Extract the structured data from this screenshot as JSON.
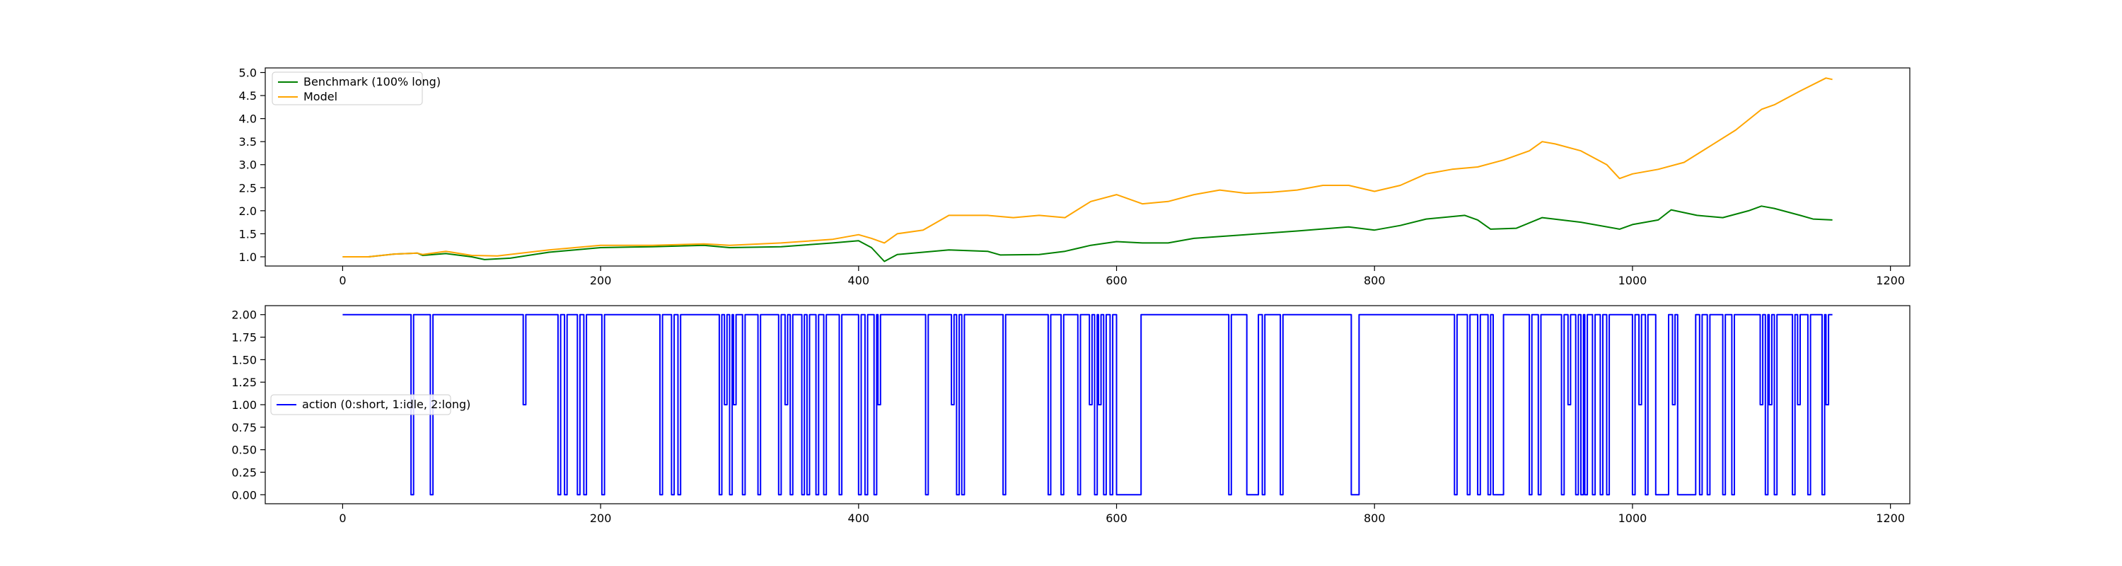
{
  "chart_data": [
    {
      "type": "line",
      "title": "",
      "xlabel": "",
      "ylabel": "",
      "xlim": [
        -60,
        1215
      ],
      "ylim": [
        0.8,
        5.1
      ],
      "xticks": [
        0,
        200,
        400,
        600,
        800,
        1000,
        1200
      ],
      "xtick_labels": [
        "0",
        "200",
        "400",
        "600",
        "800",
        "1000",
        "1200"
      ],
      "yticks": [
        1.0,
        1.5,
        2.0,
        2.5,
        3.0,
        3.5,
        4.0,
        4.5,
        5.0
      ],
      "ytick_labels": [
        "1.0",
        "1.5",
        "2.0",
        "2.5",
        "3.0",
        "3.5",
        "4.0",
        "4.5",
        "5.0"
      ],
      "grid": false,
      "legend_position": "upper-left",
      "series": [
        {
          "name": "Benchmark (100% long)",
          "color": "#008000",
          "points": [
            [
              0,
              1.0
            ],
            [
              20,
              1.0
            ],
            [
              40,
              1.06
            ],
            [
              58,
              1.08
            ],
            [
              62,
              1.03
            ],
            [
              80,
              1.07
            ],
            [
              100,
              1.0
            ],
            [
              110,
              0.94
            ],
            [
              130,
              0.97
            ],
            [
              160,
              1.1
            ],
            [
              200,
              1.2
            ],
            [
              240,
              1.22
            ],
            [
              280,
              1.25
            ],
            [
              300,
              1.2
            ],
            [
              340,
              1.22
            ],
            [
              380,
              1.3
            ],
            [
              400,
              1.35
            ],
            [
              410,
              1.2
            ],
            [
              420,
              0.9
            ],
            [
              430,
              1.05
            ],
            [
              450,
              1.1
            ],
            [
              470,
              1.15
            ],
            [
              500,
              1.12
            ],
            [
              510,
              1.04
            ],
            [
              540,
              1.05
            ],
            [
              560,
              1.12
            ],
            [
              580,
              1.25
            ],
            [
              600,
              1.33
            ],
            [
              620,
              1.3
            ],
            [
              640,
              1.3
            ],
            [
              660,
              1.4
            ],
            [
              700,
              1.48
            ],
            [
              740,
              1.56
            ],
            [
              780,
              1.65
            ],
            [
              800,
              1.58
            ],
            [
              820,
              1.68
            ],
            [
              840,
              1.82
            ],
            [
              870,
              1.9
            ],
            [
              880,
              1.8
            ],
            [
              890,
              1.6
            ],
            [
              910,
              1.62
            ],
            [
              930,
              1.85
            ],
            [
              960,
              1.75
            ],
            [
              990,
              1.6
            ],
            [
              1000,
              1.7
            ],
            [
              1020,
              1.8
            ],
            [
              1030,
              2.02
            ],
            [
              1050,
              1.9
            ],
            [
              1070,
              1.85
            ],
            [
              1090,
              2.0
            ],
            [
              1100,
              2.1
            ],
            [
              1110,
              2.05
            ],
            [
              1130,
              1.9
            ],
            [
              1140,
              1.82
            ],
            [
              1155,
              1.8
            ]
          ]
        },
        {
          "name": "Model",
          "color": "#ffa500",
          "points": [
            [
              0,
              1.0
            ],
            [
              20,
              1.0
            ],
            [
              40,
              1.06
            ],
            [
              58,
              1.08
            ],
            [
              62,
              1.05
            ],
            [
              80,
              1.12
            ],
            [
              100,
              1.03
            ],
            [
              120,
              1.02
            ],
            [
              160,
              1.15
            ],
            [
              200,
              1.25
            ],
            [
              240,
              1.25
            ],
            [
              280,
              1.28
            ],
            [
              300,
              1.25
            ],
            [
              340,
              1.3
            ],
            [
              380,
              1.38
            ],
            [
              400,
              1.48
            ],
            [
              410,
              1.4
            ],
            [
              420,
              1.3
            ],
            [
              430,
              1.5
            ],
            [
              450,
              1.58
            ],
            [
              470,
              1.9
            ],
            [
              500,
              1.9
            ],
            [
              520,
              1.85
            ],
            [
              540,
              1.9
            ],
            [
              560,
              1.85
            ],
            [
              580,
              2.2
            ],
            [
              600,
              2.35
            ],
            [
              620,
              2.15
            ],
            [
              640,
              2.2
            ],
            [
              660,
              2.35
            ],
            [
              680,
              2.45
            ],
            [
              700,
              2.38
            ],
            [
              720,
              2.4
            ],
            [
              740,
              2.45
            ],
            [
              760,
              2.55
            ],
            [
              780,
              2.55
            ],
            [
              800,
              2.42
            ],
            [
              820,
              2.55
            ],
            [
              840,
              2.8
            ],
            [
              860,
              2.9
            ],
            [
              880,
              2.95
            ],
            [
              900,
              3.1
            ],
            [
              920,
              3.3
            ],
            [
              930,
              3.5
            ],
            [
              940,
              3.45
            ],
            [
              960,
              3.3
            ],
            [
              980,
              3.0
            ],
            [
              990,
              2.7
            ],
            [
              1000,
              2.8
            ],
            [
              1020,
              2.9
            ],
            [
              1040,
              3.05
            ],
            [
              1060,
              3.4
            ],
            [
              1080,
              3.75
            ],
            [
              1100,
              4.2
            ],
            [
              1110,
              4.3
            ],
            [
              1130,
              4.6
            ],
            [
              1150,
              4.88
            ],
            [
              1155,
              4.85
            ]
          ]
        }
      ]
    },
    {
      "type": "line",
      "title": "",
      "xlabel": "",
      "ylabel": "",
      "xlim": [
        -60,
        1215
      ],
      "ylim": [
        -0.1,
        2.1
      ],
      "xticks": [
        0,
        200,
        400,
        600,
        800,
        1000,
        1200
      ],
      "xtick_labels": [
        "0",
        "200",
        "400",
        "600",
        "800",
        "1000",
        "1200"
      ],
      "yticks": [
        0.0,
        0.25,
        0.5,
        0.75,
        1.0,
        1.25,
        1.5,
        1.75,
        2.0
      ],
      "ytick_labels": [
        "0.00",
        "0.25",
        "0.50",
        "0.75",
        "1.00",
        "1.25",
        "1.50",
        "1.75",
        "2.00"
      ],
      "grid": false,
      "legend_position": "center-left",
      "series": [
        {
          "name": "action (0:short, 1:idle, 2:long)",
          "color": "#0000ff",
          "steps": {
            "start": 0,
            "end": 1155,
            "base": 2,
            "segments": [
              [
                53,
                55,
                0
              ],
              [
                68,
                70,
                0
              ],
              [
                140,
                142,
                1
              ],
              [
                167,
                169,
                0
              ],
              [
                172,
                174,
                0
              ],
              [
                182,
                184,
                0
              ],
              [
                187,
                189,
                0
              ],
              [
                201,
                203,
                0
              ],
              [
                246,
                248,
                0
              ],
              [
                255,
                257,
                0
              ],
              [
                260,
                262,
                0
              ],
              [
                292,
                294,
                0
              ],
              [
                296,
                298,
                1
              ],
              [
                300,
                302,
                0
              ],
              [
                303,
                305,
                1
              ],
              [
                310,
                312,
                0
              ],
              [
                322,
                324,
                0
              ],
              [
                338,
                340,
                0
              ],
              [
                343,
                345,
                1
              ],
              [
                347,
                349,
                0
              ],
              [
                356,
                358,
                0
              ],
              [
                360,
                362,
                0
              ],
              [
                367,
                369,
                0
              ],
              [
                373,
                375,
                0
              ],
              [
                385,
                387,
                0
              ],
              [
                400,
                402,
                0
              ],
              [
                405,
                407,
                0
              ],
              [
                412,
                414,
                0
              ],
              [
                415,
                417,
                1
              ],
              [
                452,
                454,
                0
              ],
              [
                472,
                474,
                1
              ],
              [
                476,
                478,
                0
              ],
              [
                480,
                482,
                0
              ],
              [
                512,
                514,
                0
              ],
              [
                547,
                549,
                0
              ],
              [
                557,
                559,
                0
              ],
              [
                570,
                572,
                0
              ],
              [
                579,
                581,
                1
              ],
              [
                583,
                585,
                0
              ],
              [
                586,
                588,
                1
              ],
              [
                590,
                592,
                0
              ],
              [
                595,
                597,
                0
              ],
              [
                600,
                619,
                0
              ],
              [
                687,
                689,
                0
              ],
              [
                701,
                710,
                0
              ],
              [
                713,
                715,
                0
              ],
              [
                727,
                729,
                0
              ],
              [
                782,
                788,
                0
              ],
              [
                862,
                864,
                0
              ],
              [
                872,
                874,
                0
              ],
              [
                880,
                882,
                0
              ],
              [
                888,
                890,
                0
              ],
              [
                892,
                900,
                0
              ],
              [
                920,
                922,
                0
              ],
              [
                927,
                929,
                0
              ],
              [
                945,
                947,
                0
              ],
              [
                950,
                952,
                1
              ],
              [
                956,
                958,
                0
              ],
              [
                960,
                962,
                0
              ],
              [
                963,
                965,
                0
              ],
              [
                969,
                971,
                0
              ],
              [
                975,
                977,
                0
              ],
              [
                980,
                982,
                0
              ],
              [
                1000,
                1002,
                0
              ],
              [
                1005,
                1007,
                1
              ],
              [
                1010,
                1012,
                0
              ],
              [
                1018,
                1028,
                0
              ],
              [
                1031,
                1033,
                1
              ],
              [
                1035,
                1049,
                0
              ],
              [
                1052,
                1054,
                0
              ],
              [
                1058,
                1060,
                0
              ],
              [
                1070,
                1072,
                0
              ],
              [
                1077,
                1079,
                0
              ],
              [
                1099,
                1101,
                1
              ],
              [
                1103,
                1105,
                0
              ],
              [
                1106,
                1108,
                1
              ],
              [
                1110,
                1112,
                0
              ],
              [
                1124,
                1126,
                0
              ],
              [
                1128,
                1130,
                1
              ],
              [
                1136,
                1138,
                0
              ],
              [
                1147,
                1149,
                0
              ],
              [
                1150,
                1152,
                1
              ]
            ]
          }
        }
      ]
    }
  ]
}
